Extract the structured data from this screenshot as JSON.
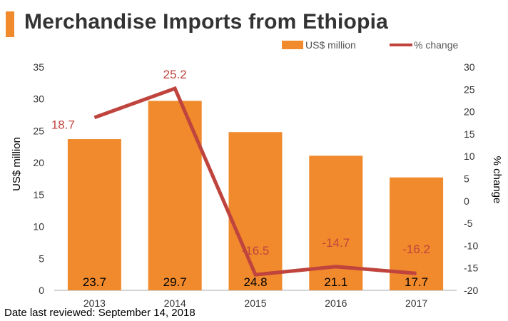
{
  "title": "Merchandise Imports from Ethiopia",
  "footnote": "Date last reviewed: September 14, 2018",
  "colors": {
    "bar": "#F08A2C",
    "line": "#C0443E",
    "accent_bar": "#F08A2C"
  },
  "chart_data": {
    "type": "bar",
    "categories": [
      "2013",
      "2014",
      "2015",
      "2016",
      "2017"
    ],
    "series": [
      {
        "name": "US$ million",
        "type": "bar",
        "axis": "left",
        "values": [
          23.7,
          29.7,
          24.8,
          21.1,
          17.7
        ],
        "labels": [
          "23.7",
          "29.7",
          "24.8",
          "21.1",
          "17.7"
        ]
      },
      {
        "name": "% change",
        "type": "line",
        "axis": "right",
        "values": [
          18.7,
          25.2,
          -16.5,
          -14.7,
          -16.2
        ],
        "labels": [
          "18.7",
          "25.2",
          "-16.5",
          "-14.7",
          "-16.2"
        ]
      }
    ],
    "ylabel": "US$ million",
    "y2label": "% change",
    "ylim": [
      0,
      35
    ],
    "y2lim": [
      -20,
      30
    ],
    "yticks": [
      "0",
      "5",
      "10",
      "15",
      "20",
      "25",
      "30",
      "35"
    ],
    "y2ticks": [
      "-20",
      "-15",
      "-10",
      "-5",
      "0",
      "5",
      "10",
      "15",
      "20",
      "25",
      "30"
    ],
    "grid": false,
    "legend": "top-right"
  }
}
